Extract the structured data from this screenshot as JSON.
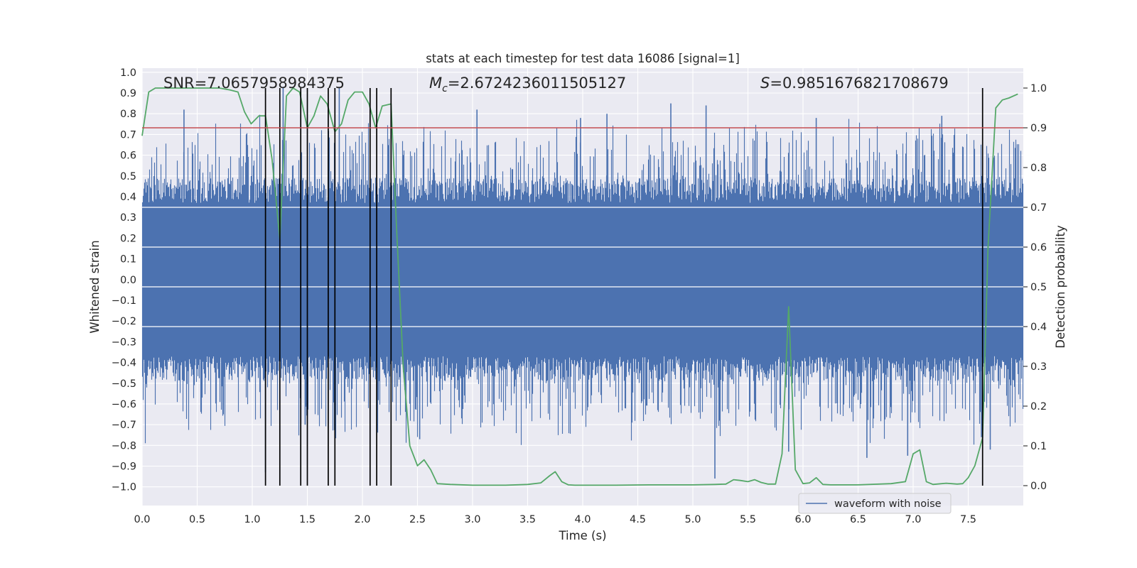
{
  "chart_data": {
    "type": "line",
    "title": "stats at each timestep for test data 16086 [signal=1]",
    "xlabel": "Time (s)",
    "ylabel_left": "Whitened strain",
    "ylabel_right": "Detection probability",
    "xlim": [
      0.0,
      8.0
    ],
    "ylim_left": [
      -1.09,
      1.02
    ],
    "ylim_right": [
      -0.05,
      1.05
    ],
    "x_ticks": [
      "0.0",
      "0.5",
      "1.0",
      "1.5",
      "2.0",
      "2.5",
      "3.0",
      "3.5",
      "4.0",
      "4.5",
      "5.0",
      "5.5",
      "6.0",
      "6.5",
      "7.0",
      "7.5"
    ],
    "x_tick_values": [
      0.0,
      0.5,
      1.0,
      1.5,
      2.0,
      2.5,
      3.0,
      3.5,
      4.0,
      4.5,
      5.0,
      5.5,
      6.0,
      6.5,
      7.0,
      7.5
    ],
    "y_left_ticks": [
      "1.0",
      "0.9",
      "0.8",
      "0.7",
      "0.6",
      "0.5",
      "0.4",
      "0.3",
      "0.2",
      "0.1",
      "0.0",
      "−0.1",
      "−0.2",
      "−0.3",
      "−0.4",
      "−0.5",
      "−0.6",
      "−0.7",
      "−0.8",
      "−0.9",
      "−1.0"
    ],
    "y_left_tick_values": [
      1.0,
      0.9,
      0.8,
      0.7,
      0.6,
      0.5,
      0.4,
      0.3,
      0.2,
      0.1,
      0.0,
      -0.1,
      -0.2,
      -0.3,
      -0.4,
      -0.5,
      -0.6,
      -0.7,
      -0.8,
      -0.9,
      -1.0
    ],
    "y_right_ticks": [
      "1.0",
      "0.9",
      "0.8",
      "0.7",
      "0.6",
      "0.5",
      "0.4",
      "0.3",
      "0.2",
      "0.1",
      "0.0"
    ],
    "y_right_tick_values": [
      1.0,
      0.9,
      0.8,
      0.7,
      0.6,
      0.5,
      0.4,
      0.3,
      0.2,
      0.1,
      0.0
    ],
    "annotations": {
      "snr": "SNR=7.0657958984375",
      "mc_symbol": "M",
      "mc_subscript": "c",
      "mc_value": "=2.6724236011505127",
      "s_symbol": "S",
      "s_value": "=0.9851676821708679"
    },
    "threshold": {
      "value": 0.9,
      "axis": "right",
      "color": "#c44e52"
    },
    "detection_events_x": [
      1.12,
      1.25,
      1.44,
      1.5,
      1.69,
      1.75,
      2.07,
      2.13,
      2.26,
      7.63
    ],
    "detection_probability": {
      "name": "Detection probability",
      "color": "#55a868",
      "x": [
        0.0,
        0.06,
        0.12,
        0.2,
        0.3,
        0.4,
        0.5,
        0.6,
        0.7,
        0.8,
        0.87,
        0.93,
        0.99,
        1.06,
        1.12,
        1.18,
        1.25,
        1.31,
        1.37,
        1.43,
        1.5,
        1.56,
        1.62,
        1.68,
        1.75,
        1.81,
        1.87,
        1.93,
        2.0,
        2.06,
        2.12,
        2.18,
        2.26,
        2.31,
        2.37,
        2.43,
        2.5,
        2.56,
        2.62,
        2.68,
        2.8,
        3.0,
        3.3,
        3.5,
        3.62,
        3.7,
        3.75,
        3.81,
        3.87,
        3.93,
        4.0,
        4.3,
        4.6,
        4.8,
        5.0,
        5.2,
        5.3,
        5.37,
        5.43,
        5.5,
        5.56,
        5.62,
        5.68,
        5.75,
        5.81,
        5.87,
        5.93,
        6.0,
        6.06,
        6.12,
        6.18,
        6.25,
        6.5,
        6.8,
        6.93,
        7.0,
        7.06,
        7.12,
        7.18,
        7.3,
        7.4,
        7.45,
        7.5,
        7.56,
        7.63,
        7.68,
        7.75,
        7.81,
        7.87,
        7.95
      ],
      "y": [
        0.88,
        0.99,
        1.0,
        1.0,
        1.0,
        1.0,
        1.0,
        1.0,
        1.0,
        0.995,
        0.99,
        0.94,
        0.91,
        0.93,
        0.93,
        0.82,
        0.62,
        0.98,
        1.0,
        0.99,
        0.9,
        0.93,
        0.98,
        0.96,
        0.89,
        0.91,
        0.97,
        0.99,
        0.99,
        0.96,
        0.9,
        0.955,
        0.96,
        0.65,
        0.3,
        0.1,
        0.05,
        0.065,
        0.04,
        0.005,
        0.003,
        0.001,
        0.001,
        0.003,
        0.007,
        0.025,
        0.035,
        0.01,
        0.002,
        0.001,
        0.001,
        0.001,
        0.002,
        0.002,
        0.002,
        0.003,
        0.004,
        0.015,
        0.013,
        0.01,
        0.015,
        0.008,
        0.004,
        0.004,
        0.08,
        0.45,
        0.04,
        0.005,
        0.007,
        0.02,
        0.003,
        0.002,
        0.002,
        0.005,
        0.01,
        0.08,
        0.09,
        0.01,
        0.003,
        0.006,
        0.004,
        0.005,
        0.02,
        0.05,
        0.12,
        0.6,
        0.95,
        0.97,
        0.975,
        0.985
      ]
    },
    "legend": {
      "label": "waveform with noise",
      "location": "lower right"
    },
    "strain_series": {
      "name": "waveform with noise",
      "color": "#4c72b0",
      "dense_band": [
        -0.42,
        0.42
      ],
      "extreme_spikes": [
        {
          "x": 0.38,
          "y": 0.82
        },
        {
          "x": 1.12,
          "y": -0.93
        },
        {
          "x": 1.28,
          "y": 0.93
        },
        {
          "x": 1.48,
          "y": -0.7
        },
        {
          "x": 1.79,
          "y": 0.93
        },
        {
          "x": 2.26,
          "y": 0.78
        },
        {
          "x": 2.52,
          "y": -0.77
        },
        {
          "x": 3.04,
          "y": 0.82
        },
        {
          "x": 3.98,
          "y": 0.78
        },
        {
          "x": 4.22,
          "y": 0.8
        },
        {
          "x": 4.8,
          "y": 0.85
        },
        {
          "x": 5.12,
          "y": 0.84
        },
        {
          "x": 5.2,
          "y": -0.96
        },
        {
          "x": 5.87,
          "y": -0.83
        },
        {
          "x": 6.12,
          "y": 0.78
        },
        {
          "x": 6.58,
          "y": -0.86
        },
        {
          "x": 6.95,
          "y": -0.85
        },
        {
          "x": 7.26,
          "y": 0.79
        },
        {
          "x": 7.62,
          "y": -0.76
        },
        {
          "x": 7.7,
          "y": -0.82
        }
      ]
    }
  }
}
